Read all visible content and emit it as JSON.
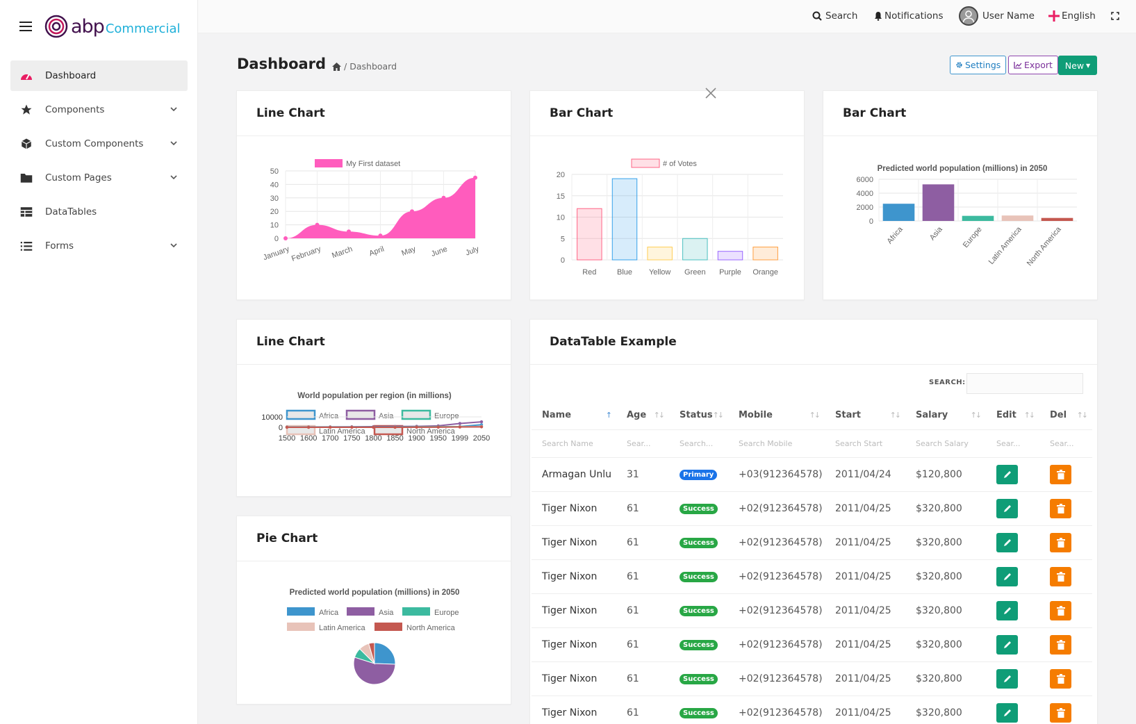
{
  "app": {
    "logo_text": "abp",
    "logo_sub": "Commercial"
  },
  "sidebar": {
    "items": [
      {
        "label": "Dashboard",
        "icon": "dashboard-gauge-icon",
        "active": true
      },
      {
        "label": "Components",
        "icon": "star-icon",
        "has_children": true
      },
      {
        "label": "Custom Components",
        "icon": "cube-icon",
        "has_children": true
      },
      {
        "label": "Custom Pages",
        "icon": "folder-icon",
        "has_children": true
      },
      {
        "label": "DataTables",
        "icon": "table-icon"
      },
      {
        "label": "Forms",
        "icon": "list-icon",
        "has_children": true
      }
    ]
  },
  "topbar": {
    "search": "Search",
    "notifications": "Notifications",
    "user": "User Name",
    "language": "English"
  },
  "header": {
    "title": "Dashboard",
    "breadcrumb_current": "Dashboard",
    "settings": "Settings",
    "export": "Export",
    "new": "New"
  },
  "cards": {
    "line1": "Line Chart",
    "bar1": "Bar Chart",
    "bar2": "Bar Chart",
    "line2": "Line Chart",
    "pie": "Pie Chart",
    "table": "DataTable Example"
  },
  "colors": {
    "accent": "#0f9d77",
    "pink": "#ff5cbd",
    "africa": "#3e95cd",
    "asia": "#8e5ea2",
    "europe": "#3cba9f",
    "latin": "#e8c3b9",
    "north": "#c45850"
  },
  "chart_data": [
    {
      "type": "area",
      "legend": [
        "My First dataset"
      ],
      "categories": [
        "January",
        "February",
        "March",
        "April",
        "May",
        "June",
        "July"
      ],
      "series": [
        {
          "name": "My First dataset",
          "values": [
            0,
            10,
            5,
            2,
            20,
            30,
            45
          ]
        }
      ],
      "ylim": [
        0,
        50
      ],
      "yticks": [
        0,
        10,
        20,
        30,
        40,
        50
      ]
    },
    {
      "type": "bar",
      "legend": [
        "# of Votes"
      ],
      "categories": [
        "Red",
        "Blue",
        "Yellow",
        "Green",
        "Purple",
        "Orange"
      ],
      "values": [
        12,
        19,
        3,
        5,
        2,
        3
      ],
      "ylim": [
        0,
        20
      ],
      "yticks": [
        0,
        5,
        10,
        15,
        20
      ]
    },
    {
      "type": "bar",
      "title": "Predicted world population (millions) in 2050",
      "categories": [
        "Africa",
        "Asia",
        "Europe",
        "Latin America",
        "North America"
      ],
      "values": [
        2478,
        5267,
        734,
        784,
        433
      ],
      "ylim": [
        0,
        6000
      ],
      "yticks": [
        0,
        2000,
        4000,
        6000
      ]
    },
    {
      "type": "line",
      "title": "World population per region (in millions)",
      "categories": [
        "1500",
        "1600",
        "1700",
        "1750",
        "1800",
        "1850",
        "1900",
        "1950",
        "1999",
        "2050"
      ],
      "series": [
        {
          "name": "Africa",
          "values": [
            86,
            114,
            106,
            106,
            107,
            111,
            133,
            221,
            783,
            2478
          ]
        },
        {
          "name": "Asia",
          "values": [
            282,
            350,
            411,
            502,
            635,
            809,
            947,
            1402,
            3700,
            5267
          ]
        },
        {
          "name": "Europe",
          "values": [
            168,
            170,
            178,
            190,
            203,
            276,
            408,
            547,
            675,
            734
          ]
        },
        {
          "name": "Latin America",
          "values": [
            40,
            20,
            10,
            16,
            24,
            38,
            74,
            167,
            508,
            784
          ]
        },
        {
          "name": "North America",
          "values": [
            6,
            3,
            2,
            2,
            7,
            26,
            82,
            172,
            312,
            433
          ]
        }
      ],
      "ylim": [
        0,
        10000
      ],
      "yticks": [
        0,
        10000
      ]
    },
    {
      "type": "pie",
      "title": "Predicted world population (millions) in 2050",
      "categories": [
        "Africa",
        "Asia",
        "Europe",
        "Latin America",
        "North America"
      ],
      "values": [
        2478,
        5267,
        734,
        784,
        433
      ]
    }
  ],
  "table": {
    "search_label": "SEARCH:",
    "columns": [
      "Name",
      "Age",
      "Status",
      "Mobile",
      "Start",
      "Salary",
      "Edit",
      "Del"
    ],
    "filters": [
      "Search Name",
      "Search Age",
      "Search Status",
      "Search Mobile",
      "Search Start",
      "Search Salary",
      "Search Edit",
      "Search Del"
    ],
    "rows": [
      {
        "name": "Armagan Unlu",
        "age": "31",
        "status": "Primary",
        "mobile": "+03(912364578)",
        "start": "2011/04/24",
        "salary": "$120,800"
      },
      {
        "name": "Tiger Nixon",
        "age": "61",
        "status": "Success",
        "mobile": "+02(912364578)",
        "start": "2011/04/25",
        "salary": "$320,800"
      },
      {
        "name": "Tiger Nixon",
        "age": "61",
        "status": "Success",
        "mobile": "+02(912364578)",
        "start": "2011/04/25",
        "salary": "$320,800"
      },
      {
        "name": "Tiger Nixon",
        "age": "61",
        "status": "Success",
        "mobile": "+02(912364578)",
        "start": "2011/04/25",
        "salary": "$320,800"
      },
      {
        "name": "Tiger Nixon",
        "age": "61",
        "status": "Success",
        "mobile": "+02(912364578)",
        "start": "2011/04/25",
        "salary": "$320,800"
      },
      {
        "name": "Tiger Nixon",
        "age": "61",
        "status": "Success",
        "mobile": "+02(912364578)",
        "start": "2011/04/25",
        "salary": "$320,800"
      },
      {
        "name": "Tiger Nixon",
        "age": "61",
        "status": "Success",
        "mobile": "+02(912364578)",
        "start": "2011/04/25",
        "salary": "$320,800"
      },
      {
        "name": "Tiger Nixon",
        "age": "61",
        "status": "Success",
        "mobile": "+02(912364578)",
        "start": "2011/04/25",
        "salary": "$320,800"
      }
    ]
  }
}
